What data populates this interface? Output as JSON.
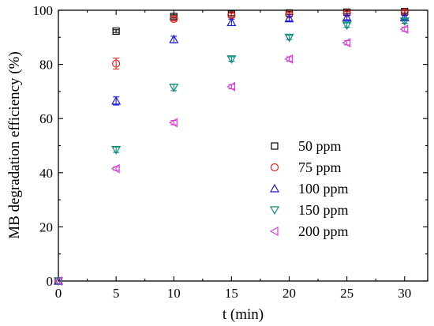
{
  "chart_data": {
    "type": "scatter",
    "title": "",
    "xlabel": "t (min)",
    "ylabel": "MB degradation efficiency (%)",
    "xlim": [
      0,
      32
    ],
    "ylim": [
      0,
      100
    ],
    "xticks": [
      0,
      5,
      10,
      15,
      20,
      25,
      30
    ],
    "yticks": [
      0,
      20,
      40,
      60,
      80,
      100
    ],
    "grid": false,
    "legend_position": "lower-right",
    "series": [
      {
        "name": "50 ppm",
        "marker": "square",
        "color": "#000000",
        "x": [
          0,
          5,
          10,
          15,
          20,
          25,
          30
        ],
        "y": [
          0,
          92.3,
          97.7,
          98.6,
          99.0,
          99.3,
          99.5
        ],
        "err": [
          0,
          0.5,
          0.6,
          0.6,
          0.5,
          0.5,
          0.5
        ]
      },
      {
        "name": "75 ppm",
        "marker": "circle",
        "color": "#e8201c",
        "x": [
          0,
          5,
          10,
          15,
          20,
          25,
          30
        ],
        "y": [
          0,
          80.3,
          96.8,
          98.2,
          98.5,
          98.9,
          99.2
        ],
        "err": [
          0,
          2.0,
          0.7,
          0.7,
          0.6,
          0.6,
          0.6
        ]
      },
      {
        "name": "100 ppm",
        "marker": "triangle-up",
        "color": "#1f1fd6",
        "x": [
          0,
          5,
          10,
          15,
          20,
          25,
          30
        ],
        "y": [
          0,
          66.5,
          89.2,
          95.5,
          96.9,
          97.3,
          97.3
        ],
        "err": [
          0,
          1.5,
          1.2,
          1.2,
          0.8,
          0.8,
          0.8
        ]
      },
      {
        "name": "150 ppm",
        "marker": "triangle-down",
        "color": "#0c8a7a",
        "x": [
          0,
          5,
          10,
          15,
          20,
          25,
          30
        ],
        "y": [
          0,
          48.5,
          71.5,
          82.0,
          90.0,
          94.5,
          96.0
        ],
        "err": [
          0,
          1.0,
          1.2,
          0.8,
          0.8,
          0.8,
          0.8
        ]
      },
      {
        "name": "200 ppm",
        "marker": "triangle-left",
        "color": "#d63fd6",
        "x": [
          0,
          5,
          10,
          15,
          20,
          25,
          30
        ],
        "y": [
          0,
          41.5,
          58.5,
          71.8,
          82.0,
          88.0,
          93.0
        ],
        "err": [
          0,
          0.6,
          0.8,
          0.8,
          0.8,
          0.8,
          0.8
        ]
      }
    ]
  }
}
